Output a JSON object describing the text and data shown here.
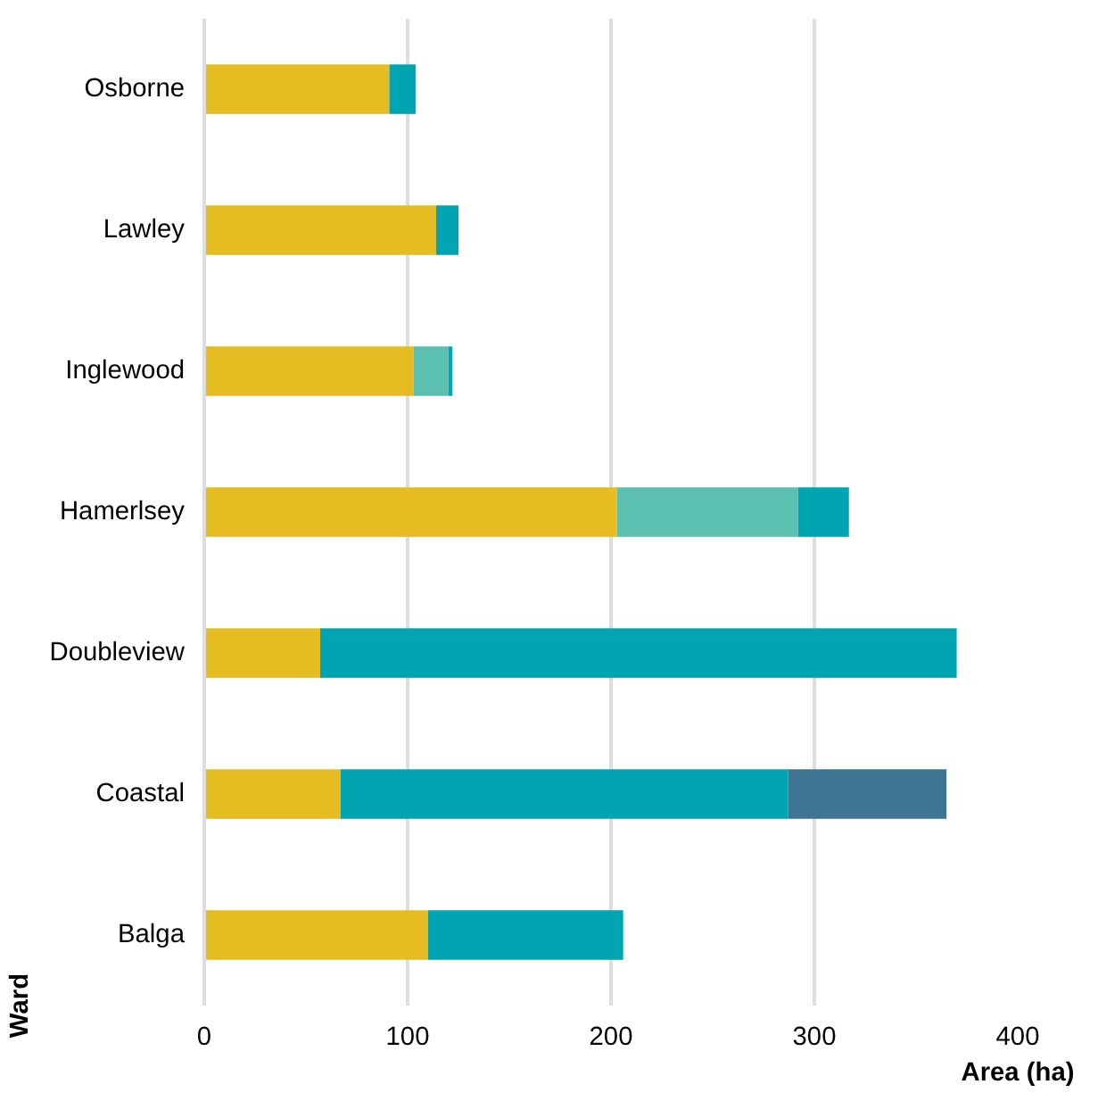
{
  "chart_data": {
    "type": "bar",
    "orientation": "horizontal",
    "stacked": true,
    "xlabel": "Area (ha)",
    "ylabel": "Ward",
    "categories": [
      "Osborne",
      "Lawley",
      "Inglewood",
      "Hamerlsey",
      "Doubleview",
      "Coastal",
      "Balga"
    ],
    "series": [
      {
        "color": "#e5bc22",
        "values": [
          91,
          114,
          103,
          203,
          57,
          67,
          110
        ]
      },
      {
        "color": "#5bc0b0",
        "values": [
          0,
          0,
          17,
          89,
          0,
          0,
          0
        ]
      },
      {
        "color": "#00a5b2",
        "values": [
          13,
          11,
          2,
          25,
          313,
          220,
          96
        ]
      },
      {
        "color": "#3d7592",
        "values": [
          0,
          0,
          0,
          0,
          0,
          78,
          0
        ]
      }
    ],
    "xlim": [
      0,
      400
    ],
    "xticks": [
      0,
      100,
      200,
      300,
      400
    ],
    "grid": "x"
  }
}
